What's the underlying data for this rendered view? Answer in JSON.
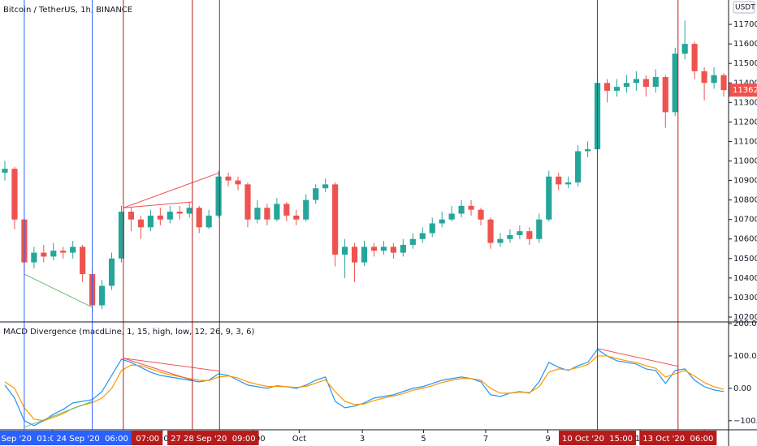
{
  "chart_data": [
    {
      "type": "candlestick",
      "title": "Bitcoin / TetherUS, 1h, BINANCE",
      "currency": "USDT",
      "up_color": "#26a69a",
      "down_color": "#ef5350",
      "open": [
        10940,
        10960,
        10700,
        10480,
        10530,
        10510,
        10540,
        10530,
        10560,
        10420,
        10260,
        10360,
        10500,
        10740,
        10700,
        10660,
        10720,
        10700,
        10740,
        10730,
        10760,
        10660,
        10720,
        10920,
        10900,
        10880,
        10700,
        10760,
        10700,
        10780,
        10720,
        10700,
        10800,
        10860,
        10880,
        10520,
        10560,
        10480,
        10560,
        10540,
        10560,
        10530,
        10570,
        10600,
        10630,
        10680,
        10700,
        10730,
        10770,
        10750,
        10700,
        10580,
        10600,
        10620,
        10640,
        10600,
        10700,
        10920,
        10880,
        10890,
        11050,
        11060,
        11400,
        11360,
        11380,
        11400,
        11420,
        11380,
        11430,
        11250,
        11550,
        11600,
        11460,
        11400,
        11440
      ],
      "high": [
        11000,
        10970,
        10710,
        10560,
        10570,
        10580,
        10560,
        10590,
        10570,
        10440,
        10390,
        10530,
        10770,
        10760,
        10720,
        10750,
        10760,
        10770,
        10770,
        10790,
        10770,
        10750,
        10950,
        10940,
        10920,
        10890,
        10800,
        10780,
        10810,
        10790,
        10750,
        10830,
        10880,
        10910,
        10890,
        10600,
        10580,
        10590,
        10580,
        10590,
        10580,
        10600,
        10630,
        10660,
        10710,
        10740,
        10770,
        10800,
        10800,
        10760,
        10710,
        10630,
        10650,
        10670,
        10660,
        10730,
        10950,
        10940,
        10920,
        11080,
        11100,
        11440,
        11420,
        11420,
        11440,
        11460,
        11440,
        11470,
        11440,
        11580,
        11720,
        11610,
        11480,
        11480,
        11450
      ],
      "low": [
        10900,
        10650,
        10430,
        10450,
        10480,
        10490,
        10500,
        10500,
        10380,
        10220,
        10240,
        10340,
        10480,
        10640,
        10600,
        10640,
        10670,
        10680,
        10700,
        10710,
        10630,
        10650,
        10710,
        10870,
        10850,
        10660,
        10680,
        10670,
        10690,
        10690,
        10670,
        10690,
        10780,
        10840,
        10460,
        10400,
        10380,
        10460,
        10510,
        10520,
        10500,
        10510,
        10550,
        10580,
        10610,
        10660,
        10690,
        10710,
        10720,
        10670,
        10550,
        10560,
        10580,
        10600,
        10570,
        10580,
        10690,
        10850,
        10860,
        10870,
        11020,
        11040,
        11300,
        11330,
        11350,
        11360,
        11330,
        11350,
        11170,
        11230,
        11520,
        11420,
        11310,
        11370,
        11330
      ],
      "close": [
        10960,
        10700,
        10480,
        10530,
        10510,
        10540,
        10530,
        10560,
        10420,
        10260,
        10360,
        10500,
        10740,
        10700,
        10660,
        10720,
        10700,
        10740,
        10730,
        10760,
        10660,
        10720,
        10920,
        10900,
        10880,
        10700,
        10760,
        10700,
        10780,
        10720,
        10700,
        10800,
        10860,
        10880,
        10520,
        10560,
        10480,
        10560,
        10540,
        10560,
        10530,
        10570,
        10600,
        10630,
        10680,
        10700,
        10730,
        10770,
        10750,
        10700,
        10580,
        10600,
        10620,
        10640,
        10600,
        10700,
        10920,
        10880,
        10890,
        11050,
        11060,
        11400,
        11360,
        11380,
        11400,
        11420,
        11380,
        11430,
        11250,
        11550,
        11600,
        11460,
        11400,
        11440,
        11362.92
      ],
      "xlim": [
        -0.5,
        74.5
      ],
      "ylim": [
        10175,
        11825
      ],
      "yticks": [
        {
          "value": 10200,
          "label": "10200.00"
        },
        {
          "value": 10300,
          "label": "10300.00"
        },
        {
          "value": 10400,
          "label": "10400.00"
        },
        {
          "value": 10500,
          "label": "10500.00"
        },
        {
          "value": 10600,
          "label": "10600.00"
        },
        {
          "value": 10700,
          "label": "10700.00"
        },
        {
          "value": 10800,
          "label": "10800.00"
        },
        {
          "value": 10900,
          "label": "10900.00"
        },
        {
          "value": 11000,
          "label": "11000.00"
        },
        {
          "value": 11100,
          "label": "11100.00"
        },
        {
          "value": 11200,
          "label": "11200.00"
        },
        {
          "value": 11300,
          "label": "11300.00"
        },
        {
          "value": 11400,
          "label": "11400.00"
        },
        {
          "value": 11500,
          "label": "11500.00"
        },
        {
          "value": 11600,
          "label": "11600.00"
        },
        {
          "value": 11700,
          "label": "11700.00"
        }
      ],
      "divergences": [
        {
          "x": [
            2,
            9
          ],
          "y": [
            10420,
            10250
          ],
          "color": "#66bb6a"
        },
        {
          "x": [
            12.2,
            19.3
          ],
          "y": [
            10760,
            10790
          ],
          "color": "#ef5350"
        },
        {
          "x": [
            12.2,
            22.1
          ],
          "y": [
            10760,
            10940
          ],
          "color": "#ef5350"
        }
      ]
    },
    {
      "type": "line",
      "title": "MACD Divergence (macdLine, 1, 15, high, low, 12, 26, 9, 3, 6)",
      "series": [
        {
          "name": "MACD",
          "color": "#2196f3",
          "values": [
            10,
            -30,
            -100,
            -115,
            -100,
            -80,
            -65,
            -45,
            -40,
            -35,
            -10,
            40,
            90,
            80,
            65,
            50,
            40,
            35,
            30,
            25,
            20,
            25,
            45,
            40,
            25,
            10,
            5,
            0,
            8,
            5,
            0,
            10,
            25,
            35,
            -40,
            -60,
            -55,
            -45,
            -30,
            -25,
            -20,
            -10,
            0,
            5,
            15,
            25,
            30,
            35,
            30,
            20,
            -20,
            -25,
            -15,
            -10,
            -15,
            20,
            80,
            65,
            55,
            70,
            80,
            120,
            100,
            85,
            80,
            75,
            60,
            55,
            15,
            55,
            60,
            25,
            5,
            -5,
            -10
          ]
        },
        {
          "name": "Signal",
          "color": "#ff9800",
          "values": [
            20,
            0,
            -60,
            -95,
            -100,
            -90,
            -78,
            -62,
            -52,
            -44,
            -30,
            0,
            55,
            72,
            70,
            60,
            50,
            42,
            36,
            30,
            25,
            24,
            35,
            38,
            32,
            20,
            12,
            6,
            6,
            5,
            3,
            6,
            16,
            26,
            -10,
            -40,
            -50,
            -48,
            -38,
            -30,
            -24,
            -16,
            -6,
            0,
            8,
            18,
            25,
            30,
            30,
            25,
            0,
            -15,
            -15,
            -12,
            -13,
            5,
            50,
            60,
            57,
            64,
            73,
            100,
            100,
            92,
            85,
            80,
            70,
            62,
            35,
            45,
            55,
            38,
            18,
            5,
            -3
          ]
        }
      ],
      "xlim": [
        -0.5,
        74.5
      ],
      "ylim": [
        -128,
        205
      ],
      "yticks": [
        {
          "value": 200,
          "label": "200.00"
        },
        {
          "value": 100,
          "label": "100.00"
        },
        {
          "value": 0,
          "label": "0.00"
        },
        {
          "value": -100,
          "label": "−100.00"
        }
      ],
      "divergences": [
        {
          "x": [
            2,
            9
          ],
          "y": [
            -120,
            -40
          ],
          "color": "#66bb6a"
        },
        {
          "x": [
            12.2,
            22.1
          ],
          "y": [
            93,
            53
          ],
          "color": "#ef5350"
        },
        {
          "x": [
            12.2,
            19.3
          ],
          "y": [
            93,
            25
          ],
          "color": "#ef5350"
        },
        {
          "x": [
            61,
            69.3
          ],
          "y": [
            123,
            68
          ],
          "color": "#ef5350"
        }
      ],
      "xticks": [
        {
          "value": 4.9,
          "label": "23"
        },
        {
          "value": 16.2,
          "label": "12:00"
        },
        {
          "value": 25.6,
          "label": "12:00"
        },
        {
          "value": 30.3,
          "label": "Oct"
        },
        {
          "value": 36.8,
          "label": "3"
        },
        {
          "value": 43.1,
          "label": "5"
        },
        {
          "value": 49.5,
          "label": "7"
        },
        {
          "value": 55.9,
          "label": "9"
        },
        {
          "value": 65.4,
          "label": "12"
        },
        {
          "value": 72,
          "label": "14"
        }
      ],
      "markers": [
        {
          "x": 12.2,
          "label": "25 Sep '20  07:00",
          "color": "#b71c1c"
        },
        {
          "x": 2,
          "label": "22 Sep '20  01:00",
          "color": "#2962ff"
        },
        {
          "x": 9,
          "label": "24 Sep '20  06:00",
          "color": "#2962ff"
        },
        {
          "x": 19.3,
          "label": "27 Sep '20",
          "color": "#b71c1c"
        },
        {
          "x": 22.1,
          "label": "28 Sep '20  09:00",
          "color": "#b71c1c"
        },
        {
          "x": 61,
          "label": "10 Oct '20  15:00",
          "color": "#b71c1c"
        },
        {
          "x": 69.3,
          "label": "13 Oct '20  06:00",
          "color": "#b71c1c"
        }
      ]
    }
  ]
}
